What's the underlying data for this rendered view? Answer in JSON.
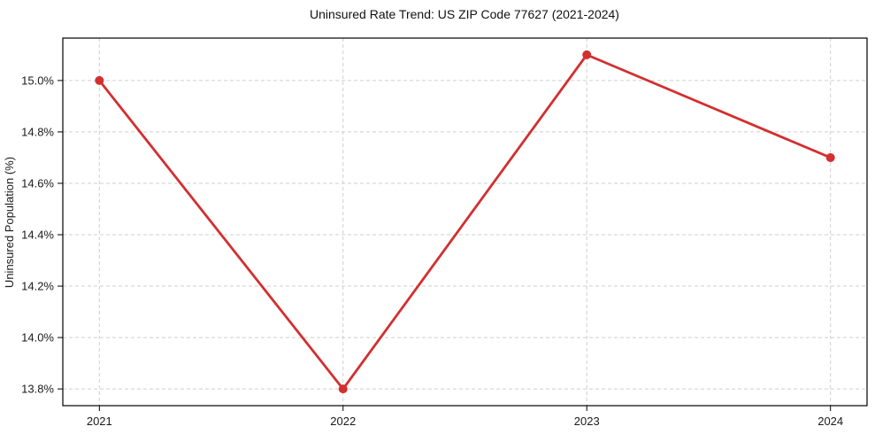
{
  "chart_data": {
    "type": "line",
    "title": "Uninsured Rate Trend: US ZIP Code 77627 (2021-2024)",
    "xlabel": "",
    "ylabel": "Uninsured Population (%)",
    "x": [
      2021,
      2022,
      2023,
      2024
    ],
    "x_tick_labels": [
      "2021",
      "2022",
      "2023",
      "2024"
    ],
    "values": [
      15.0,
      13.8,
      15.1,
      14.7
    ],
    "y_ticks": [
      13.8,
      14.0,
      14.2,
      14.4,
      14.6,
      14.8,
      15.0
    ],
    "y_tick_labels": [
      "13.8%",
      "14.0%",
      "14.2%",
      "14.4%",
      "14.6%",
      "14.8%",
      "15.0%"
    ],
    "xlim": [
      2020.85,
      2024.15
    ],
    "ylim": [
      13.735,
      15.165
    ],
    "grid": true,
    "legend": false,
    "legend_position": "none",
    "line_color": "#d32f2f",
    "marker": "circle",
    "marker_color": "#d32f2f",
    "grid_color": "#cfcfcf",
    "background_color": "#ffffff"
  }
}
